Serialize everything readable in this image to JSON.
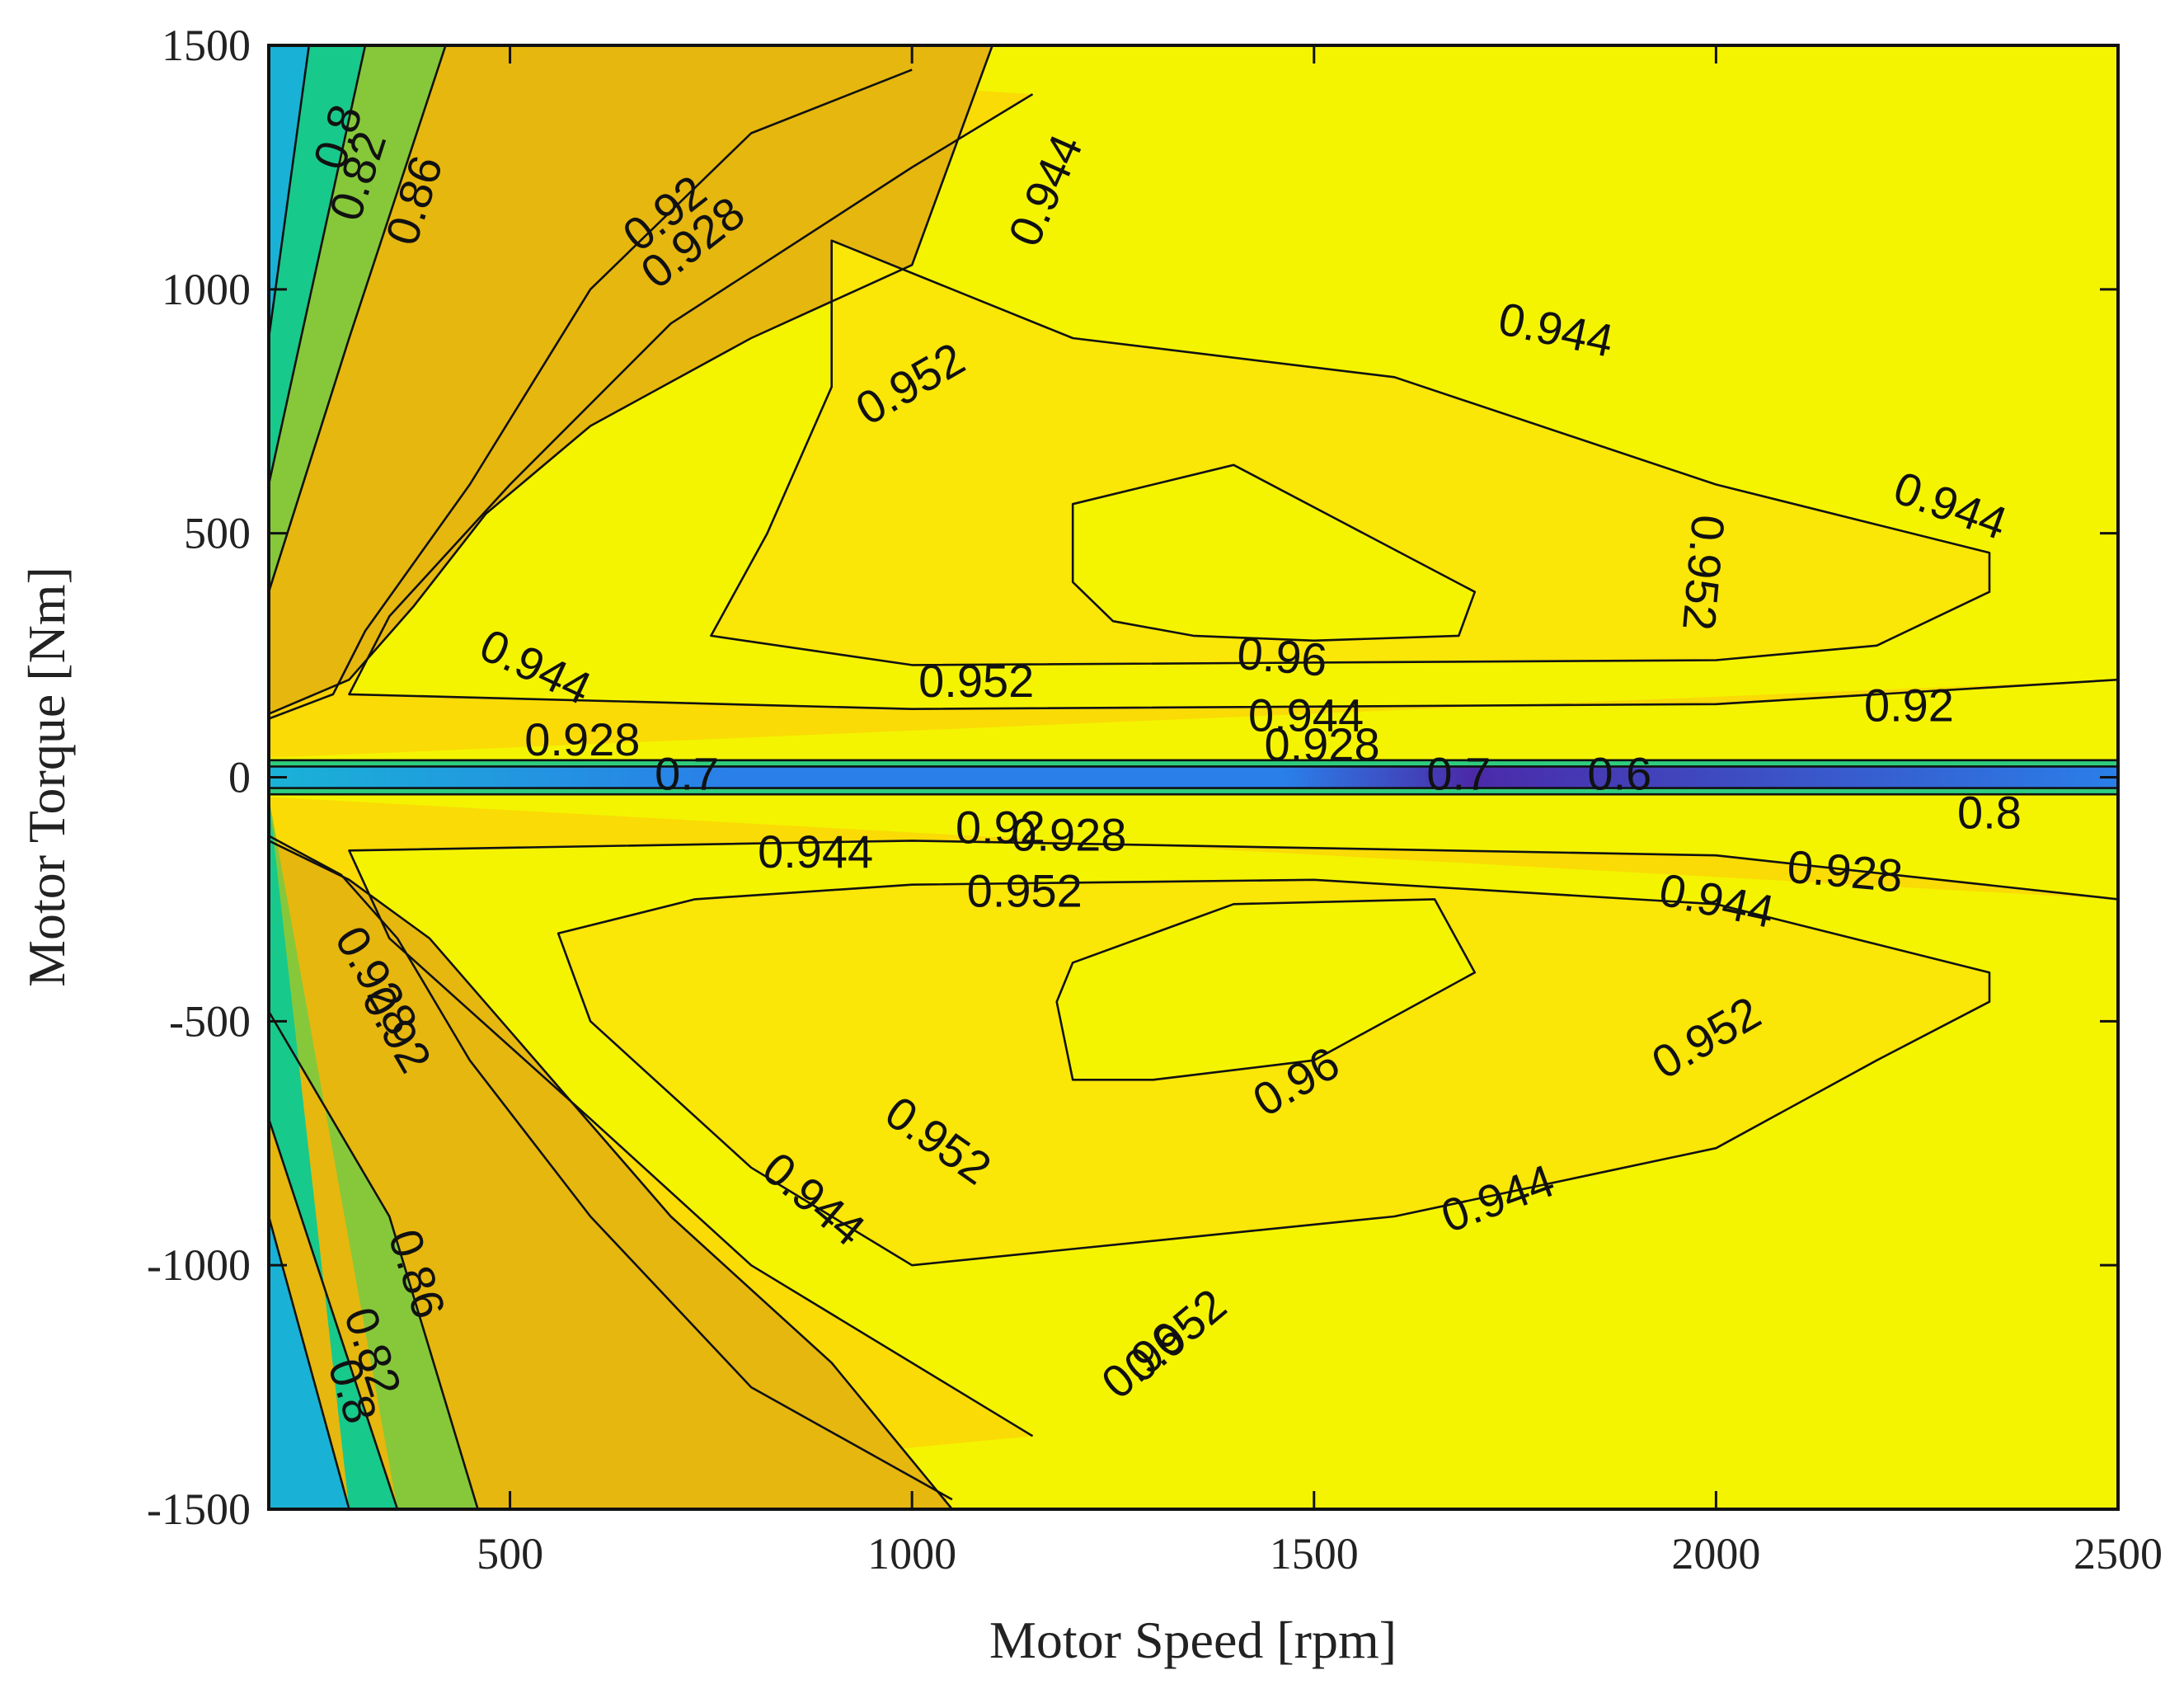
{
  "chart_data": {
    "type": "contour",
    "xlabel": "Motor Speed [rpm]",
    "ylabel": "Motor Torque [Nm]",
    "xlim": [
      200,
      2500
    ],
    "ylim": [
      -1500,
      1500
    ],
    "xticks": [
      500,
      1000,
      1500,
      2000,
      2500
    ],
    "yticks": [
      1500,
      1000,
      500,
      0,
      -500,
      -1000,
      -1500
    ],
    "xtick_labels": [
      "500",
      "1000",
      "1500",
      "2000",
      "2500"
    ],
    "ytick_labels": [
      "1500",
      "1000",
      "500",
      "0",
      "-500",
      "-1000",
      "-1500"
    ],
    "grid": false,
    "legend": "none",
    "colormap": {
      "0.6": "#4b2aa8",
      "0.7": "#2a7fe8",
      "0.8": "#19b2d6",
      "0.82": "#18c98c",
      "0.86": "#86c83a",
      "0.92": "#e6b70e",
      "0.928": "#f6cf06",
      "0.944": "#fadb05",
      "0.952": "#fae607",
      "0.96": "#f4f401"
    },
    "levels": [
      {
        "level": 0.8,
        "color": "#19b2d6",
        "upper": [
          [
            200,
            1500
          ],
          [
            250,
            1500
          ],
          [
            200,
            900
          ]
        ],
        "lower": [
          [
            200,
            -1500
          ],
          [
            300,
            -1500
          ],
          [
            200,
            -900
          ]
        ]
      },
      {
        "level": 0.82,
        "color": "#18c98c",
        "upper": [
          [
            250,
            1500
          ],
          [
            320,
            1500
          ],
          [
            200,
            600
          ]
        ],
        "lower": [
          [
            300,
            -1500
          ],
          [
            360,
            -1500
          ],
          [
            200,
            -700
          ]
        ]
      },
      {
        "level": 0.86,
        "color": "#86c83a",
        "upper": [
          [
            320,
            1500
          ],
          [
            420,
            1500
          ],
          [
            300,
            900
          ],
          [
            200,
            380
          ]
        ],
        "lower": [
          [
            360,
            -1500
          ],
          [
            460,
            -1500
          ],
          [
            350,
            -900
          ],
          [
            200,
            -480
          ]
        ]
      },
      {
        "level": 0.92,
        "color": "#e6b70e",
        "upper": [
          [
            1100,
            1500
          ],
          [
            1000,
            1050
          ],
          [
            800,
            900
          ],
          [
            600,
            720
          ],
          [
            470,
            540
          ],
          [
            380,
            350
          ],
          [
            300,
            200
          ],
          [
            200,
            130
          ]
        ],
        "lower": [
          [
            200,
            -130
          ],
          [
            300,
            -210
          ],
          [
            400,
            -330
          ],
          [
            500,
            -520
          ],
          [
            700,
            -900
          ],
          [
            900,
            -1200
          ],
          [
            1050,
            -1500
          ]
        ]
      },
      {
        "level": 0.928,
        "color": "#f6cf06",
        "upper": [
          [
            1000,
            1450
          ],
          [
            800,
            1320
          ],
          [
            600,
            1000
          ],
          [
            450,
            600
          ],
          [
            320,
            300
          ],
          [
            280,
            170
          ],
          [
            200,
            120
          ]
        ],
        "lower": [
          [
            200,
            -120
          ],
          [
            290,
            -200
          ],
          [
            360,
            -330
          ],
          [
            450,
            -580
          ],
          [
            600,
            -900
          ],
          [
            800,
            -1250
          ],
          [
            1050,
            -1480
          ]
        ]
      },
      {
        "level": 0.944,
        "color": "#fadb05",
        "upper": [
          [
            1150,
            1400
          ],
          [
            1000,
            1250
          ],
          [
            700,
            930
          ],
          [
            500,
            600
          ],
          [
            350,
            330
          ],
          [
            300,
            170
          ],
          [
            1000,
            140
          ],
          [
            2000,
            150
          ],
          [
            2500,
            200
          ]
        ],
        "lower": [
          [
            2500,
            -250
          ],
          [
            2000,
            -160
          ],
          [
            1000,
            -130
          ],
          [
            300,
            -150
          ],
          [
            350,
            -330
          ],
          [
            600,
            -700
          ],
          [
            800,
            -1000
          ],
          [
            1150,
            -1350
          ]
        ]
      }
    ],
    "contour_labels": [
      {
        "text": "0.8",
        "x": 290,
        "y": 1310,
        "rotate": -72
      },
      {
        "text": "0.82",
        "x": 315,
        "y": 1230,
        "rotate": -72
      },
      {
        "text": "0.86",
        "x": 385,
        "y": 1180,
        "rotate": -72
      },
      {
        "text": "0.92",
        "x": 695,
        "y": 1150,
        "rotate": -38
      },
      {
        "text": "0.928",
        "x": 730,
        "y": 1090,
        "rotate": -38
      },
      {
        "text": "0.944",
        "x": 1170,
        "y": 1200,
        "rotate": -66
      },
      {
        "text": "0.944",
        "x": 1800,
        "y": 910,
        "rotate": 12
      },
      {
        "text": "0.952",
        "x": 1000,
        "y": 800,
        "rotate": -30
      },
      {
        "text": "0.944",
        "x": 2290,
        "y": 550,
        "rotate": 20
      },
      {
        "text": "0.952",
        "x": 1980,
        "y": 420,
        "rotate": 95
      },
      {
        "text": "0.96",
        "x": 1460,
        "y": 240,
        "rotate": 5
      },
      {
        "text": "0.952",
        "x": 1080,
        "y": 190,
        "rotate": 0
      },
      {
        "text": "0.944",
        "x": 530,
        "y": 220,
        "rotate": 25
      },
      {
        "text": "0.928",
        "x": 590,
        "y": 70,
        "rotate": 0
      },
      {
        "text": "0.944",
        "x": 1490,
        "y": 120,
        "rotate": 0
      },
      {
        "text": "0.928",
        "x": 1510,
        "y": 60,
        "rotate": 0
      },
      {
        "text": "0.92",
        "x": 2240,
        "y": 140,
        "rotate": 0
      },
      {
        "text": "0.7",
        "x": 720,
        "y": 0,
        "rotate": 0
      },
      {
        "text": "0.7",
        "x": 1680,
        "y": 0,
        "rotate": 0
      },
      {
        "text": "0.6",
        "x": 1880,
        "y": 0,
        "rotate": 0
      },
      {
        "text": "0.8",
        "x": 2340,
        "y": -80,
        "rotate": 0
      },
      {
        "text": "0.92",
        "x": 1110,
        "y": -110,
        "rotate": 0
      },
      {
        "text": "0.928",
        "x": 1195,
        "y": -125,
        "rotate": 0
      },
      {
        "text": "0.944",
        "x": 880,
        "y": -160,
        "rotate": 0
      },
      {
        "text": "0.952",
        "x": 1140,
        "y": -240,
        "rotate": 0
      },
      {
        "text": "0.928",
        "x": 2160,
        "y": -200,
        "rotate": 5
      },
      {
        "text": "0.944",
        "x": 2000,
        "y": -260,
        "rotate": 12
      },
      {
        "text": "0.952",
        "x": 1990,
        "y": -540,
        "rotate": -30
      },
      {
        "text": "0.96",
        "x": 1480,
        "y": -630,
        "rotate": -30
      },
      {
        "text": "0.952",
        "x": 1030,
        "y": -750,
        "rotate": 35
      },
      {
        "text": "0.944",
        "x": 875,
        "y": -870,
        "rotate": 40
      },
      {
        "text": "0.944",
        "x": 1730,
        "y": -870,
        "rotate": -20
      },
      {
        "text": "0.86",
        "x": 380,
        "y": -1020,
        "rotate": 72
      },
      {
        "text": "0.82",
        "x": 325,
        "y": -1180,
        "rotate": 72
      },
      {
        "text": "0.8",
        "x": 300,
        "y": -1260,
        "rotate": 72
      },
      {
        "text": "0.928",
        "x": 330,
        "y": -420,
        "rotate": 60
      },
      {
        "text": "0.92",
        "x": 355,
        "y": -520,
        "rotate": 60
      },
      {
        "text": "0.96",
        "x": 1290,
        "y": -1200,
        "rotate": -40
      },
      {
        "text": "0.952",
        "x": 1330,
        "y": -1150,
        "rotate": -40
      }
    ]
  }
}
